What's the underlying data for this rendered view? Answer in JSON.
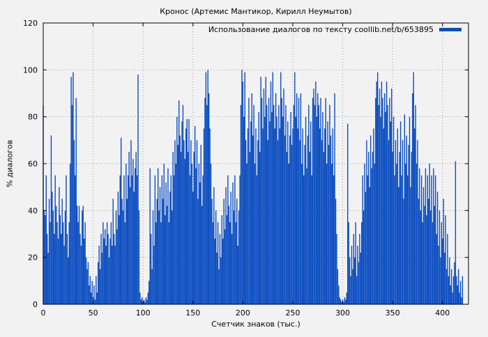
{
  "colors": {
    "bar": "#0b4dc0",
    "background": "#f2f2f2",
    "grid": "#9a9a9a",
    "axis": "#000000"
  },
  "chart_data": {
    "type": "bar",
    "title": "Кронос (Артемис Мантикор, Кирилл Неумытов)",
    "legend_label": "Использование диалогов по тексту coollib.net/b/653895",
    "xlabel": "Счетчик знаков (тыс.)",
    "ylabel": "% диалогов",
    "xlim": [
      0,
      426
    ],
    "ylim": [
      0,
      120
    ],
    "xticks": [
      0,
      50,
      100,
      150,
      200,
      250,
      300,
      350,
      400
    ],
    "yticks": [
      0,
      20,
      40,
      60,
      80,
      100,
      120
    ],
    "x_start": 0,
    "x_step": 1,
    "values": [
      85,
      40,
      38,
      55,
      30,
      22,
      45,
      35,
      72,
      48,
      40,
      30,
      55,
      42,
      35,
      28,
      50,
      38,
      30,
      45,
      35,
      25,
      40,
      55,
      30,
      20,
      35,
      60,
      97,
      85,
      99,
      70,
      55,
      88,
      42,
      35,
      42,
      30,
      25,
      40,
      42,
      28,
      35,
      20,
      15,
      18,
      8,
      12,
      5,
      10,
      3,
      8,
      2,
      12,
      5,
      18,
      25,
      15,
      30,
      22,
      35,
      28,
      32,
      25,
      35,
      30,
      20,
      28,
      35,
      25,
      45,
      30,
      25,
      40,
      32,
      48,
      38,
      55,
      71,
      45,
      40,
      55,
      35,
      60,
      45,
      55,
      65,
      50,
      70,
      55,
      62,
      48,
      58,
      65,
      55,
      98,
      40,
      5,
      2,
      3,
      1,
      2,
      1,
      3,
      2,
      5,
      10,
      58,
      30,
      15,
      40,
      25,
      55,
      35,
      45,
      58,
      40,
      50,
      35,
      55,
      45,
      60,
      38,
      52,
      42,
      58,
      35,
      48,
      55,
      40,
      65,
      55,
      70,
      60,
      80,
      68,
      87,
      72,
      65,
      78,
      85,
      70,
      62,
      75,
      79,
      65,
      79,
      55,
      70,
      60,
      48,
      65,
      76,
      58,
      70,
      45,
      60,
      52,
      68,
      42,
      55,
      75,
      88,
      99,
      85,
      100,
      90,
      75,
      60,
      45,
      35,
      50,
      28,
      40,
      22,
      35,
      15,
      30,
      20,
      38,
      28,
      45,
      32,
      50,
      38,
      55,
      42,
      35,
      48,
      30,
      52,
      40,
      55,
      35,
      45,
      25,
      40,
      55,
      85,
      100,
      95,
      80,
      99,
      70,
      60,
      75,
      88,
      65,
      78,
      90,
      72,
      85,
      60,
      75,
      55,
      70,
      82,
      65,
      97,
      88,
      75,
      92,
      80,
      97,
      85,
      70,
      88,
      78,
      95,
      82,
      99,
      85,
      75,
      90,
      80,
      70,
      85,
      75,
      99,
      88,
      80,
      92,
      72,
      85,
      65,
      78,
      60,
      72,
      82,
      68,
      75,
      85,
      99,
      80,
      90,
      75,
      88,
      70,
      90,
      60,
      75,
      55,
      68,
      80,
      58,
      72,
      85,
      65,
      78,
      55,
      88,
      92,
      85,
      95,
      80,
      90,
      85,
      75,
      88,
      70,
      82,
      65,
      75,
      88,
      60,
      78,
      68,
      85,
      72,
      60,
      75,
      55,
      90,
      45,
      30,
      15,
      8,
      3,
      2,
      1,
      2,
      1,
      3,
      2,
      5,
      77,
      35,
      20,
      12,
      25,
      15,
      30,
      20,
      35,
      12,
      25,
      18,
      30,
      22,
      35,
      55,
      40,
      60,
      48,
      70,
      55,
      65,
      50,
      72,
      58,
      65,
      75,
      60,
      88,
      95,
      99,
      85,
      92,
      80,
      95,
      88,
      75,
      90,
      82,
      95,
      85,
      70,
      88,
      78,
      92,
      65,
      80,
      55,
      70,
      60,
      75,
      50,
      65,
      78,
      55,
      70,
      45,
      81,
      60,
      72,
      55,
      68,
      80,
      50,
      65,
      90,
      99,
      75,
      85,
      60,
      70,
      45,
      58,
      40,
      55,
      35,
      50,
      42,
      58,
      38,
      55,
      45,
      60,
      40,
      55,
      35,
      58,
      42,
      55,
      30,
      48,
      25,
      40,
      20,
      35,
      28,
      45,
      22,
      38,
      15,
      30,
      12,
      20,
      8,
      15,
      5,
      12,
      18,
      61,
      12,
      8,
      15,
      5,
      10,
      3,
      12
    ]
  }
}
